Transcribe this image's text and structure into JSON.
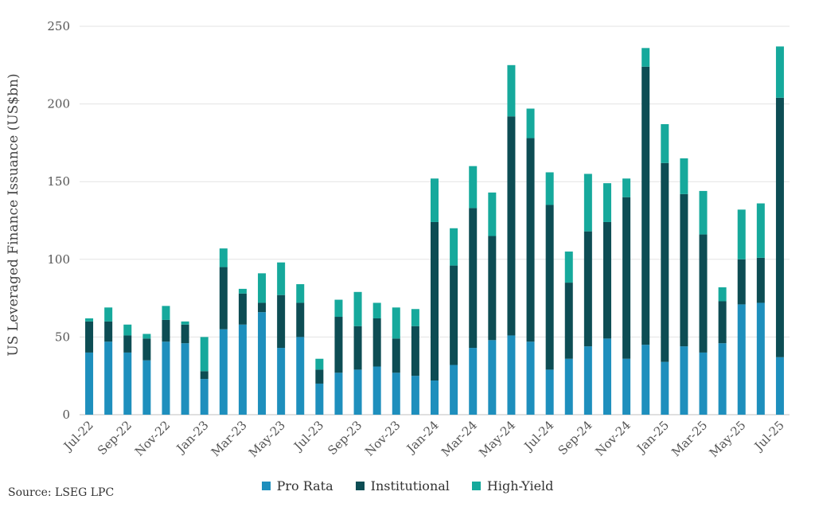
{
  "chart_data": {
    "type": "bar",
    "stacked": true,
    "ylabel": "US Leveraged Finance Issuance (US$bn)",
    "xlabel": "",
    "ylim": [
      0,
      250
    ],
    "yticks": [
      "0",
      "50",
      "100",
      "150",
      "200",
      "250"
    ],
    "grid": true,
    "legend_position": "bottom",
    "categories": [
      "Jul-22",
      "Aug-22",
      "Sep-22",
      "Oct-22",
      "Nov-22",
      "Dec-22",
      "Jan-23",
      "Feb-23",
      "Mar-23",
      "Apr-23",
      "May-23",
      "Jun-23",
      "Jul-23",
      "Aug-23",
      "Sep-23",
      "Oct-23",
      "Nov-23",
      "Dec-23",
      "Jan-24",
      "Feb-24",
      "Mar-24",
      "Apr-24",
      "May-24",
      "Jun-24",
      "Jul-24",
      "Aug-24",
      "Sep-24",
      "Oct-24",
      "Nov-24",
      "Dec-24",
      "Jan-25",
      "Feb-25",
      "Mar-25",
      "Apr-25",
      "May-25",
      "Jun-25",
      "Jul-25"
    ],
    "tick_labels": [
      "Jul-22",
      "",
      "Sep-22",
      "",
      "Nov-22",
      "",
      "Jan-23",
      "",
      "Mar-23",
      "",
      "May-23",
      "",
      "Jul-23",
      "",
      "Sep-23",
      "",
      "Nov-23",
      "",
      "Jan-24",
      "",
      "Mar-24",
      "",
      "May-24",
      "",
      "Jul-24",
      "",
      "Sep-24",
      "",
      "Nov-24",
      "",
      "Jan-25",
      "",
      "Mar-25",
      "",
      "May-25",
      "",
      "Jul-25"
    ],
    "series": [
      {
        "name": "Pro Rata",
        "color": "#1e8fbd",
        "values": [
          40,
          47,
          40,
          35,
          47,
          46,
          23,
          55,
          58,
          66,
          43,
          50,
          20,
          27,
          29,
          31,
          27,
          25,
          22,
          32,
          43,
          48,
          51,
          47,
          29,
          36,
          44,
          49,
          36,
          45,
          34,
          44,
          40,
          46,
          71,
          72,
          37
        ]
      },
      {
        "name": "Institutional",
        "color": "#0d4d54",
        "values": [
          20,
          13,
          11,
          14,
          14,
          12,
          5,
          40,
          20,
          6,
          34,
          22,
          9,
          36,
          28,
          31,
          22,
          32,
          102,
          64,
          90,
          67,
          141,
          131,
          106,
          49,
          74,
          75,
          104,
          179,
          128,
          98,
          76,
          27,
          29,
          29,
          167
        ]
      },
      {
        "name": "High-Yield",
        "color": "#16a99c",
        "values": [
          2,
          9,
          7,
          3,
          9,
          2,
          22,
          12,
          3,
          19,
          21,
          12,
          7,
          11,
          22,
          10,
          20,
          11,
          28,
          24,
          27,
          28,
          33,
          19,
          21,
          20,
          37,
          25,
          12,
          12,
          25,
          23,
          28,
          9,
          32,
          35,
          33
        ]
      }
    ]
  },
  "source": "Source: LSEG LPC"
}
